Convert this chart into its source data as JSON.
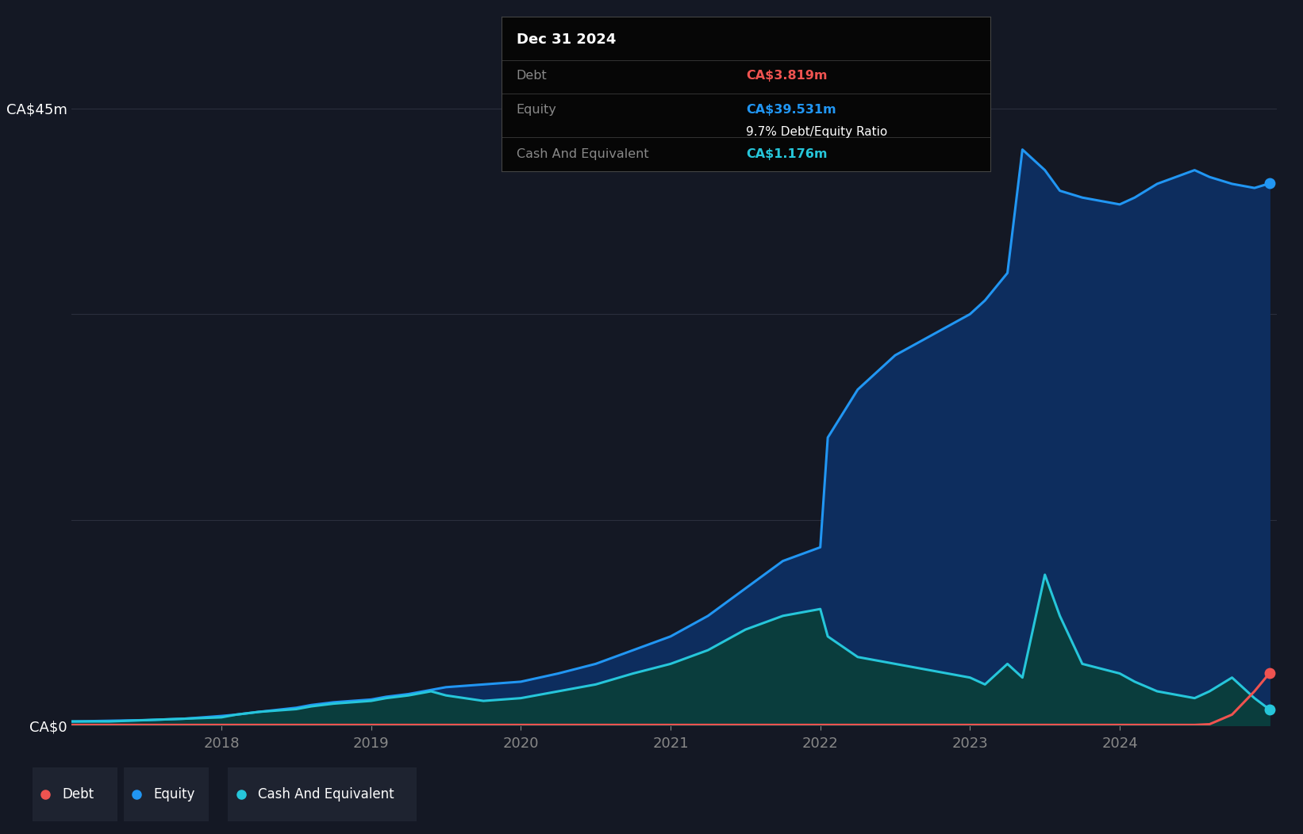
{
  "background_color": "#141824",
  "plot_bg_color": "#141824",
  "grid_color": "#2a2e3d",
  "equity_color": "#2196F3",
  "debt_color": "#ef5350",
  "cash_color": "#26c6da",
  "equity_fill": "#0d2d5e",
  "cash_fill": "#0a3d3d",
  "ylim": [
    0,
    45
  ],
  "xticks": [
    2018,
    2019,
    2020,
    2021,
    2022,
    2023,
    2024
  ],
  "tooltip": {
    "date": "Dec 31 2024",
    "debt_label": "Debt",
    "debt_value": "CA$3.819m",
    "equity_label": "Equity",
    "equity_value": "CA$39.531m",
    "ratio": "9.7% Debt/Equity Ratio",
    "cash_label": "Cash And Equivalent",
    "cash_value": "CA$1.176m"
  },
  "legend": [
    {
      "label": "Debt",
      "color": "#ef5350"
    },
    {
      "label": "Equity",
      "color": "#2196F3"
    },
    {
      "label": "Cash And Equivalent",
      "color": "#26c6da"
    }
  ],
  "dates": [
    2017.0,
    2017.25,
    2017.5,
    2017.75,
    2018.0,
    2018.1,
    2018.25,
    2018.5,
    2018.6,
    2018.75,
    2019.0,
    2019.1,
    2019.25,
    2019.4,
    2019.5,
    2019.75,
    2020.0,
    2020.25,
    2020.5,
    2020.75,
    2021.0,
    2021.25,
    2021.5,
    2021.75,
    2022.0,
    2022.05,
    2022.25,
    2022.5,
    2022.75,
    2023.0,
    2023.1,
    2023.25,
    2023.35,
    2023.5,
    2023.6,
    2023.75,
    2024.0,
    2024.1,
    2024.25,
    2024.5,
    2024.6,
    2024.75,
    2024.9,
    2025.0
  ],
  "equity": [
    0.3,
    0.35,
    0.4,
    0.5,
    0.7,
    0.8,
    1.0,
    1.3,
    1.5,
    1.7,
    1.9,
    2.1,
    2.3,
    2.6,
    2.8,
    3.0,
    3.2,
    3.8,
    4.5,
    5.5,
    6.5,
    8.0,
    10.0,
    12.0,
    13.0,
    21.0,
    24.5,
    27.0,
    28.5,
    30.0,
    31.0,
    33.0,
    42.0,
    40.5,
    39.0,
    38.5,
    38.0,
    38.5,
    39.5,
    40.5,
    40.0,
    39.5,
    39.2,
    39.531
  ],
  "debt": [
    0.05,
    0.05,
    0.05,
    0.05,
    0.05,
    0.05,
    0.05,
    0.05,
    0.05,
    0.05,
    0.05,
    0.05,
    0.05,
    0.05,
    0.05,
    0.05,
    0.05,
    0.05,
    0.05,
    0.05,
    0.05,
    0.05,
    0.05,
    0.05,
    0.05,
    0.05,
    0.05,
    0.05,
    0.05,
    0.05,
    0.05,
    0.05,
    0.05,
    0.05,
    0.05,
    0.05,
    0.05,
    0.05,
    0.05,
    0.05,
    0.1,
    0.8,
    2.5,
    3.819
  ],
  "cash": [
    0.3,
    0.3,
    0.4,
    0.5,
    0.6,
    0.8,
    1.0,
    1.2,
    1.4,
    1.6,
    1.8,
    2.0,
    2.2,
    2.5,
    2.2,
    1.8,
    2.0,
    2.5,
    3.0,
    3.8,
    4.5,
    5.5,
    7.0,
    8.0,
    8.5,
    6.5,
    5.0,
    4.5,
    4.0,
    3.5,
    3.0,
    4.5,
    3.5,
    11.0,
    8.0,
    4.5,
    3.8,
    3.2,
    2.5,
    2.0,
    2.5,
    3.5,
    2.0,
    1.176
  ]
}
